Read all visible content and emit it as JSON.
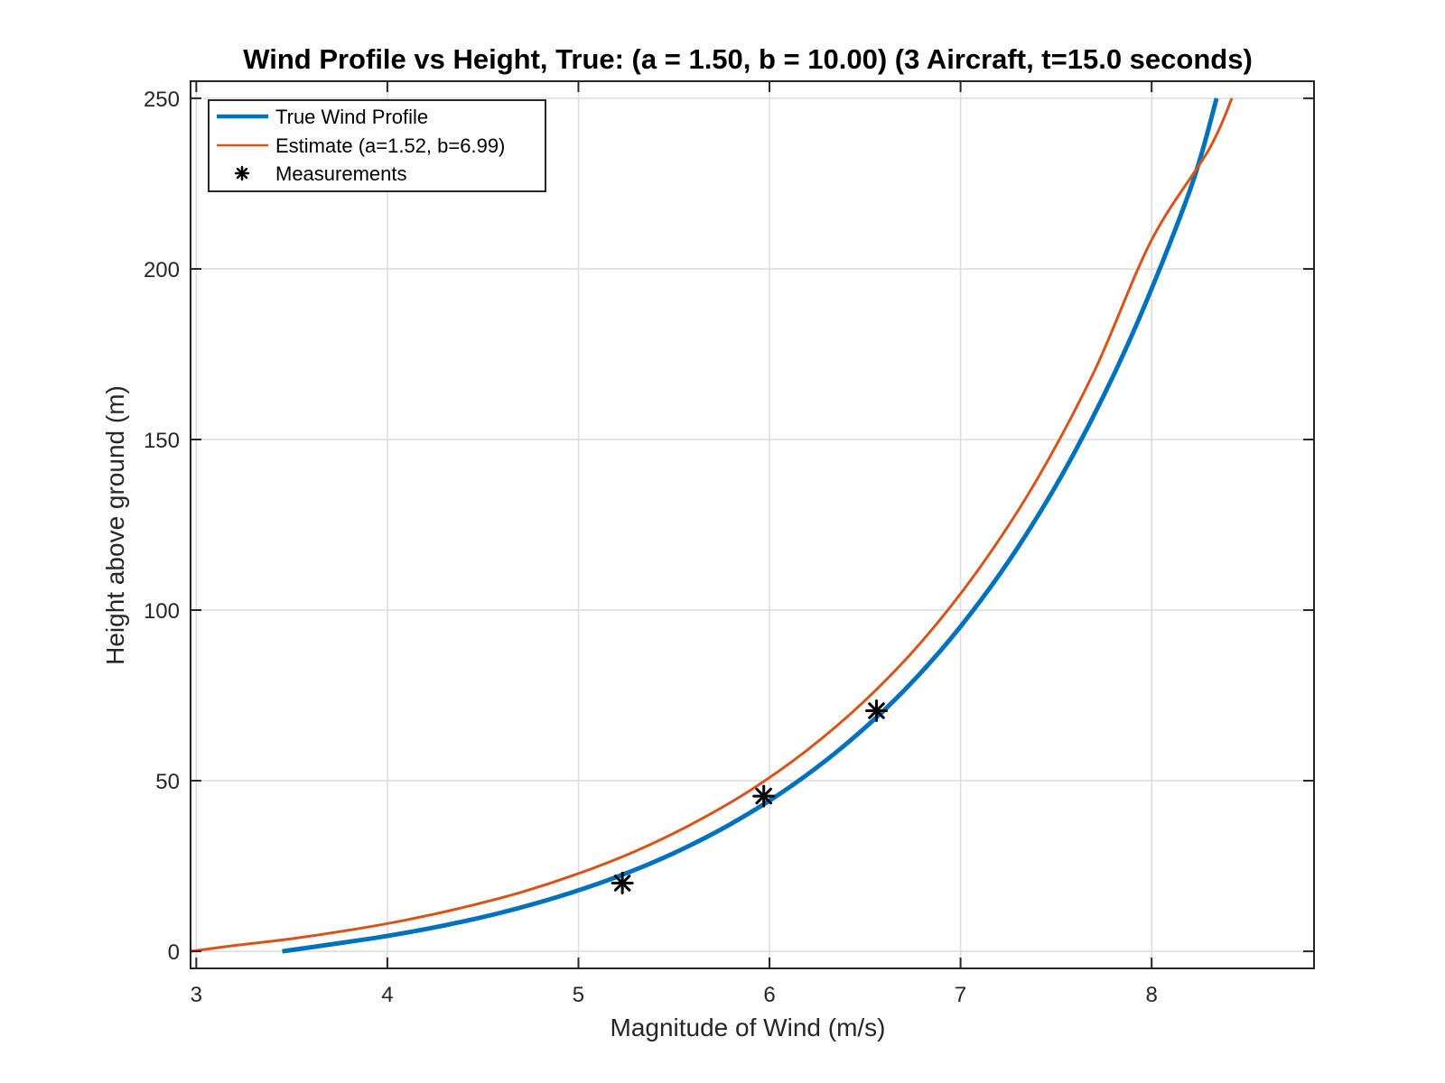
{
  "chart_data": {
    "type": "line",
    "title": "Wind Profile vs Height, True: (a = 1.50, b = 10.00) (3 Aircraft, t=15.0 seconds)",
    "xlabel": "Magnitude of Wind (m/s)",
    "ylabel": "Height above ground (m)",
    "xlim": [
      2.97,
      8.85
    ],
    "ylim": [
      -5,
      255
    ],
    "xticks": [
      3,
      4,
      5,
      6,
      7,
      8
    ],
    "yticks": [
      0,
      50,
      100,
      150,
      200,
      250
    ],
    "grid": true,
    "legend_position": "top-left",
    "series": [
      {
        "name": "True Wind Profile",
        "color": "#0072BD",
        "style": "line-thick",
        "x": [
          3.45,
          3.7,
          4.0,
          4.3,
          4.6,
          4.9,
          5.2,
          5.5,
          5.8,
          6.1,
          6.4,
          6.7,
          7.0,
          7.3,
          7.6,
          7.9,
          8.2,
          8.34
        ],
        "y": [
          0,
          2,
          4.5,
          7.6,
          11.4,
          16.1,
          21.8,
          28.8,
          37.4,
          47.9,
          60.7,
          76.2,
          95.2,
          118.4,
          146.6,
          181,
          223,
          250
        ]
      },
      {
        "name": "Estimate (a=1.52, b=6.99)",
        "color": "#D95319",
        "style": "line",
        "x": [
          2.97,
          3.2,
          3.5,
          3.8,
          4.1,
          4.4,
          4.7,
          5.0,
          5.3,
          5.6,
          5.9,
          6.2,
          6.5,
          6.8,
          7.1,
          7.4,
          7.7,
          8.0,
          8.3,
          8.42
        ],
        "y": [
          0,
          1.7,
          3.7,
          6.2,
          9.2,
          12.9,
          17.3,
          22.8,
          29.4,
          37.5,
          47.2,
          59.1,
          73.5,
          91,
          112.4,
          138.3,
          170,
          208.5,
          235,
          250
        ]
      },
      {
        "name": "Measurements",
        "color": "#000000",
        "style": "marker",
        "x": [
          5.23,
          5.97,
          6.56
        ],
        "y": [
          20,
          45.5,
          70.5
        ]
      }
    ]
  }
}
